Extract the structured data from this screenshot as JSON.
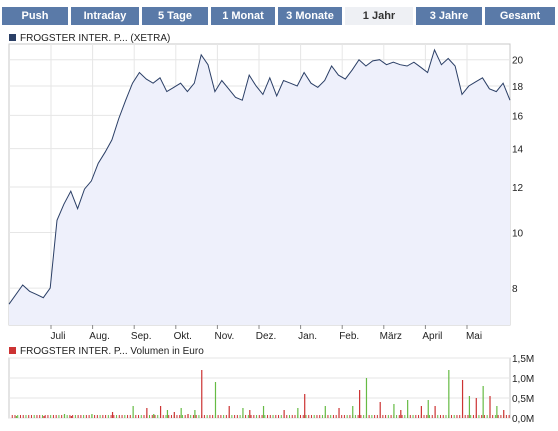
{
  "tabs": [
    {
      "label": "Push",
      "active": false
    },
    {
      "label": "Intraday",
      "active": false
    },
    {
      "label": "5 Tage",
      "active": false
    },
    {
      "label": "1 Monat",
      "active": false
    },
    {
      "label": "3 Monate",
      "active": false
    },
    {
      "label": "1 Jahr",
      "active": true
    },
    {
      "label": "3 Jahre",
      "active": false
    },
    {
      "label": "Gesamt",
      "active": false
    }
  ],
  "colors": {
    "tab_bg": "#5a7aa8",
    "line": "#2b3f66",
    "area": "#eef0fb",
    "volume_up": "#66bb44",
    "volume_down": "#cc3333"
  },
  "chart_data": [
    {
      "type": "area",
      "legend": "FROGSTER INTER. P... (XETRA)",
      "x_ticks": [
        "Juli",
        "Aug.",
        "Sep.",
        "Okt.",
        "Nov.",
        "Dez.",
        "Jan.",
        "Feb.",
        "März",
        "April",
        "Mai"
      ],
      "y_ticks": [
        8,
        10,
        12,
        14,
        16,
        18,
        20
      ],
      "y_scale": "log",
      "ylim": [
        6.9,
        21.3
      ],
      "grid": true,
      "series": [
        {
          "name": "FROGSTER INTER. P... (XETRA)",
          "x": [
            0,
            10,
            15,
            20,
            25,
            30,
            35,
            40,
            45,
            50,
            55,
            60,
            65,
            70,
            75,
            80,
            85,
            90,
            95,
            100,
            105,
            110,
            115,
            120,
            125,
            130,
            135,
            140,
            145,
            150,
            155,
            160,
            165,
            170,
            175,
            180,
            185,
            190,
            195,
            200,
            205,
            210,
            215,
            220,
            225,
            230,
            235,
            240,
            245,
            250,
            255,
            260,
            265,
            270,
            275,
            280,
            285,
            290,
            295,
            300,
            305,
            310,
            315,
            320,
            325,
            330,
            335,
            340,
            345,
            350,
            355,
            360,
            365
          ],
          "values": [
            7.5,
            8.1,
            7.9,
            7.8,
            7.7,
            8.0,
            10.5,
            11.2,
            11.8,
            11.0,
            11.9,
            12.3,
            13.2,
            13.8,
            14.5,
            15.8,
            17.0,
            18.2,
            19.0,
            18.5,
            18.2,
            18.6,
            17.6,
            17.9,
            18.2,
            17.6,
            18.2,
            20.4,
            19.6,
            17.6,
            18.4,
            17.8,
            17.2,
            17.0,
            18.8,
            18.0,
            17.4,
            18.6,
            17.3,
            18.4,
            18.2,
            18.0,
            19.0,
            18.2,
            17.9,
            18.4,
            19.5,
            18.8,
            18.5,
            19.2,
            20.0,
            19.5,
            19.9,
            20.0,
            19.6,
            19.8,
            19.6,
            19.5,
            19.8,
            19.4,
            19.0,
            20.8,
            19.6,
            20.1,
            19.5,
            17.4,
            18.0,
            18.3,
            18.6,
            17.8,
            17.6,
            18.2,
            17.0
          ],
          "color": "#2b3f66"
        }
      ]
    },
    {
      "type": "bar",
      "legend": "FROGSTER INTER. P... Volumen in Euro",
      "y_ticks": [
        "1,5M",
        "1,0M",
        "0,5M",
        "0,0M"
      ],
      "ylim": [
        0,
        1.5
      ],
      "grid": true,
      "series": [
        {
          "name": "FROGSTER INTER. P... Volumen in Euro",
          "x": [
            5,
            25,
            40,
            45,
            60,
            75,
            90,
            100,
            105,
            110,
            115,
            120,
            125,
            130,
            135,
            140,
            150,
            160,
            170,
            175,
            185,
            200,
            210,
            215,
            230,
            240,
            250,
            255,
            260,
            270,
            280,
            285,
            290,
            300,
            305,
            310,
            320,
            330,
            335,
            340,
            345,
            350,
            355,
            360
          ],
          "values": [
            0.05,
            0.05,
            0.1,
            0.05,
            0.1,
            0.15,
            0.3,
            0.25,
            0.1,
            0.3,
            0.2,
            0.15,
            0.25,
            0.1,
            0.2,
            1.2,
            0.9,
            0.3,
            0.25,
            0.2,
            0.3,
            0.2,
            0.25,
            0.6,
            0.3,
            0.25,
            0.3,
            0.7,
            1.0,
            0.4,
            0.35,
            0.2,
            0.45,
            0.3,
            0.45,
            0.3,
            1.2,
            0.95,
            0.55,
            0.5,
            0.8,
            0.55,
            0.3,
            0.2
          ]
        }
      ]
    }
  ]
}
